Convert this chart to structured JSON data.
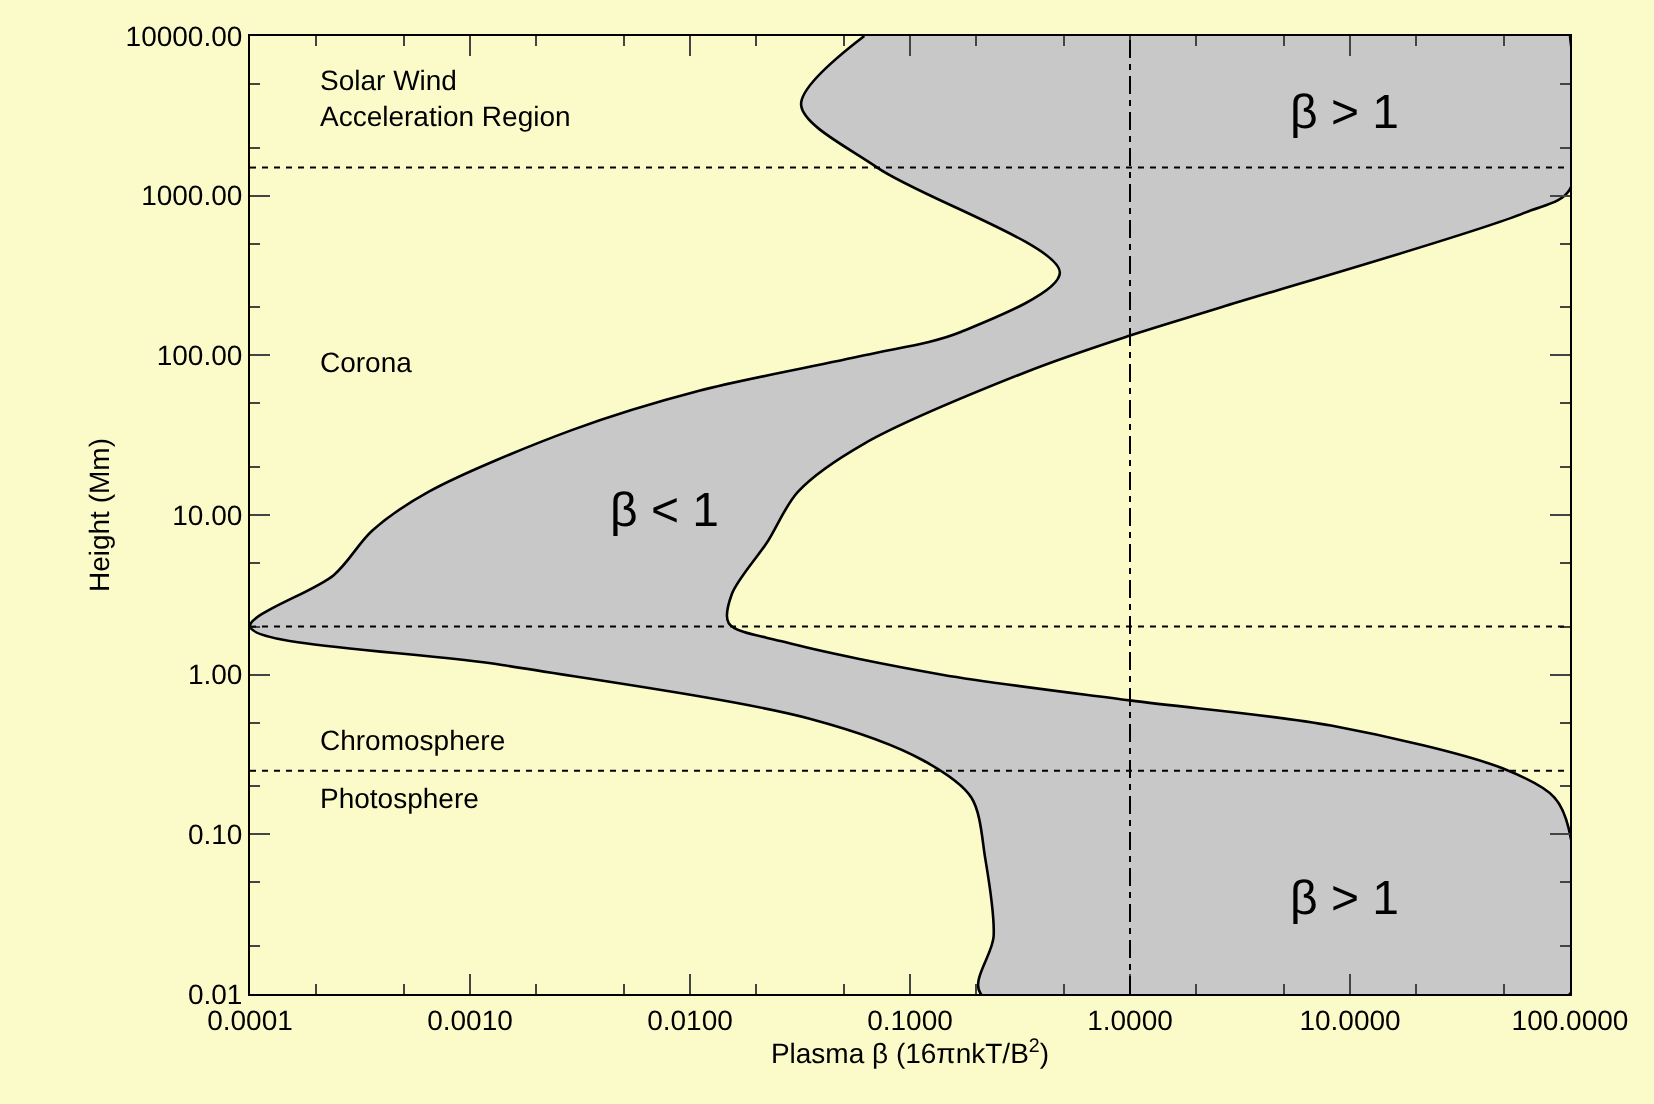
{
  "chart_data": {
    "type": "area",
    "xlabel": "Plasma β (16πnkT/B$^{2}$)",
    "ylabel": "Height (Mm)",
    "log": "xy",
    "xlim": [
      0.0001,
      100
    ],
    "ylim": [
      0.01,
      10000
    ],
    "xticks": [
      {
        "value": 0.0001,
        "label": "0.0001"
      },
      {
        "value": 0.001,
        "label": "0.0010"
      },
      {
        "value": 0.01,
        "label": "0.0100"
      },
      {
        "value": 0.1,
        "label": "0.1000"
      },
      {
        "value": 1,
        "label": "1.0000"
      },
      {
        "value": 10,
        "label": "10.0000"
      },
      {
        "value": 100,
        "label": "100.0000"
      }
    ],
    "yticks": [
      {
        "value": 0.01,
        "label": "0.01"
      },
      {
        "value": 0.1,
        "label": "0.10"
      },
      {
        "value": 1,
        "label": "1.00"
      },
      {
        "value": 10,
        "label": "10.00"
      },
      {
        "value": 100,
        "label": "100.00"
      },
      {
        "value": 1000,
        "label": "1000.00"
      },
      {
        "value": 10000,
        "label": "10000.00"
      }
    ],
    "grid": false,
    "series": [
      {
        "color": "#c8c8c8",
        "x": [
          0.062,
          0.032,
          0.071,
          0.48,
          0.17,
          0.062,
          0.011,
          0.0029,
          0.00065,
          0.00036,
          0.00024,
          0.0001,
          0.0014,
          0.035,
          0.115,
          0.19,
          0.22,
          0.24,
          0.21,
          100,
          100,
          85,
          49,
          8.2,
          1.0,
          0.14,
          0.027,
          0.015,
          0.0155,
          0.0225,
          0.031,
          0.062,
          0.34,
          1.0,
          2.6,
          62,
          100,
          100
        ],
        "values": [
          10000,
          3700,
          1500,
          330,
          140,
          100,
          60,
          34,
          14,
          8,
          4.2,
          2,
          1.15,
          0.53,
          0.29,
          0.17,
          0.07,
          0.023,
          0.01,
          0.01,
          0.1,
          0.17,
          0.26,
          0.48,
          0.69,
          1.0,
          1.6,
          2.1,
          3.2,
          6.8,
          14,
          28,
          79,
          133,
          200,
          780,
          1100,
          10000
        ]
      }
    ],
    "ref_lines": [
      {
        "axis": "x",
        "value": 1,
        "line_style": "dashdot"
      },
      {
        "axis": "y",
        "value": 1500,
        "line_style": "dotted"
      },
      {
        "axis": "y",
        "value": 2,
        "line_style": "dotted"
      },
      {
        "axis": "y",
        "value": 0.25,
        "line_style": "dotted"
      }
    ],
    "annotations": [
      "Solar Wind\nAcceleration Region",
      "Corona",
      "Chromosphere",
      "Photosphere",
      "β > 1",
      "β > 1",
      "β < 1"
    ]
  }
}
